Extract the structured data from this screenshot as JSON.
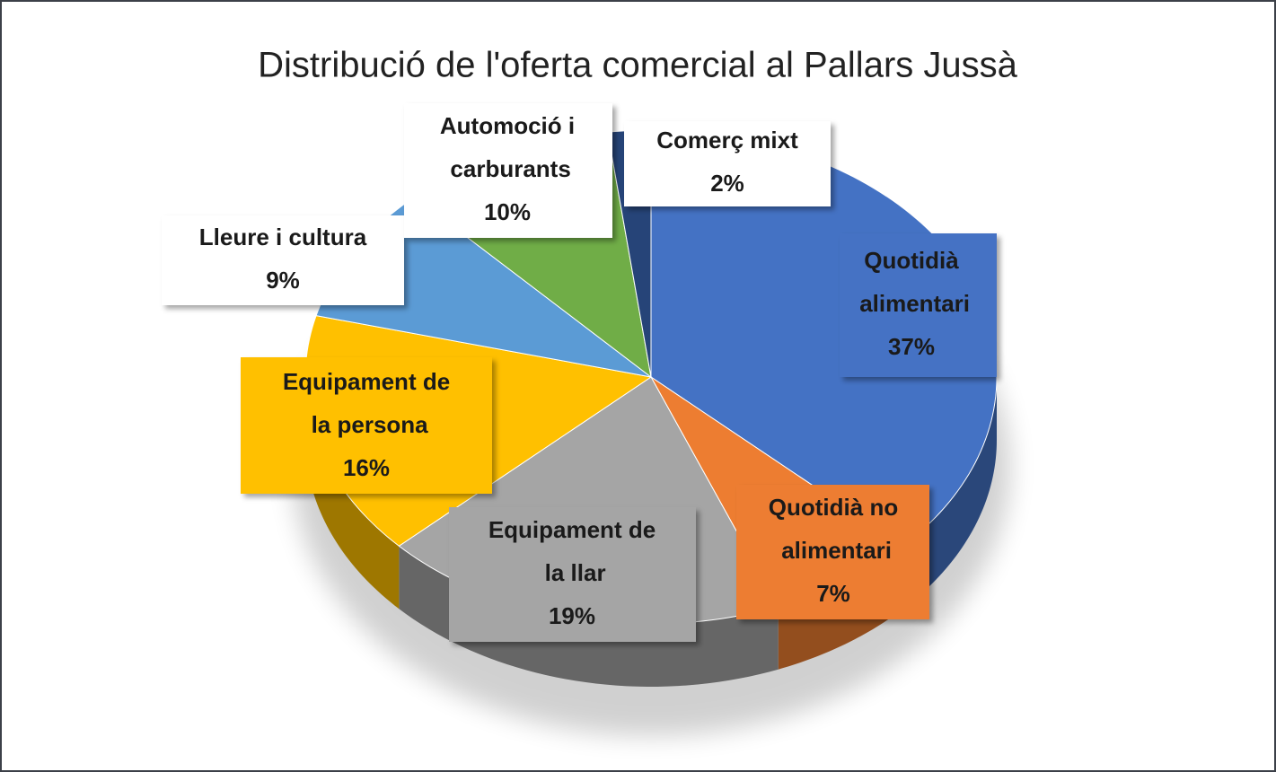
{
  "chart_data": {
    "type": "pie",
    "title": "Distribució de l'oferta comercial al Pallars Jussà",
    "categories": [
      "Quotidià alimentari",
      "Quotidià no alimentari",
      "Equipament de la llar",
      "Equipament de la persona",
      "Lleure i cultura",
      "Automoció i carburants",
      "Comerç mixt"
    ],
    "values": [
      37,
      7,
      19,
      16,
      9,
      10,
      2
    ],
    "value_labels": [
      "37%",
      "7%",
      "19%",
      "16%",
      "9%",
      "10%",
      "2%"
    ],
    "colors": [
      "#4472c4",
      "#ed7d31",
      "#a5a5a5",
      "#ffc000",
      "#5b9bd5",
      "#70ad47",
      "#264478"
    ]
  }
}
